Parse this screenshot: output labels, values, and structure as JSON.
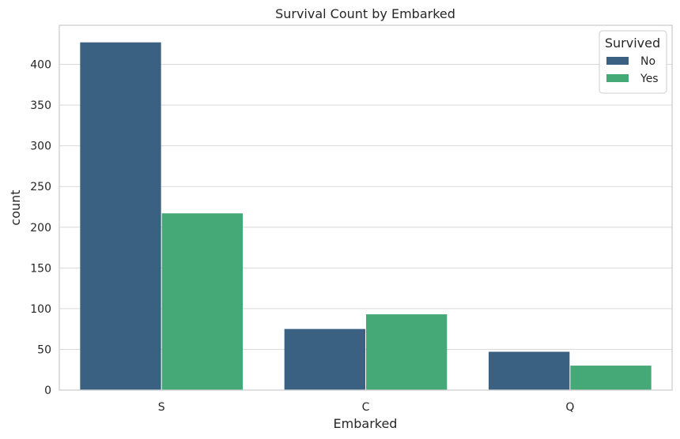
{
  "chart_data": {
    "type": "bar",
    "title": "Survival Count by Embarked",
    "xlabel": "Embarked",
    "ylabel": "count",
    "categories": [
      "S",
      "C",
      "Q"
    ],
    "series": [
      {
        "name": "No",
        "values": [
          427,
          75,
          47
        ],
        "color": "#3b6182"
      },
      {
        "name": "Yes",
        "values": [
          217,
          93,
          30
        ],
        "color": "#44a877"
      }
    ],
    "ylim": [
      0,
      448
    ],
    "yticks": [
      "0",
      "50",
      "100",
      "150",
      "200",
      "250",
      "300",
      "350",
      "400"
    ],
    "grid": true,
    "legend": {
      "title": "Survived",
      "position": "top-right"
    }
  }
}
